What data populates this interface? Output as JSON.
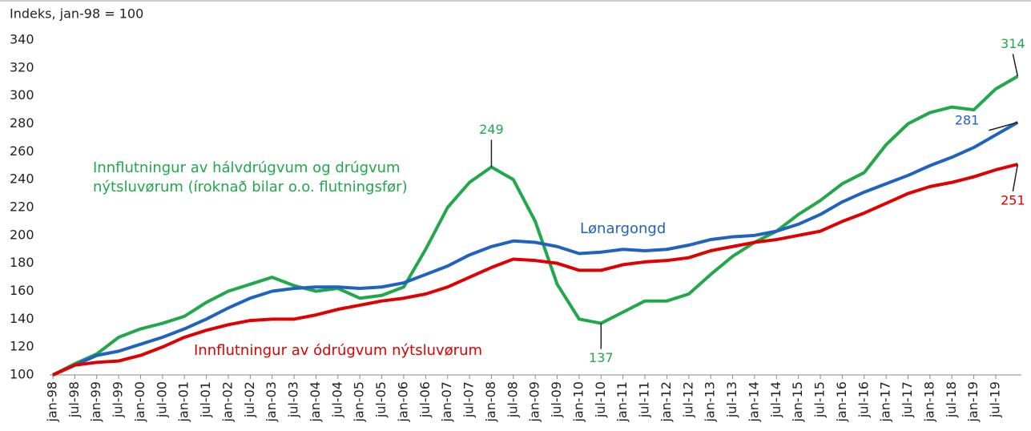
{
  "chart_data": {
    "type": "line",
    "y_label": "Indeks, jan-98 = 100",
    "categories": [
      "jan-98",
      "jul-98",
      "jan-99",
      "jul-99",
      "jan-00",
      "jul-00",
      "jan-01",
      "jul-01",
      "jan-02",
      "jul-02",
      "jan-03",
      "jul-03",
      "jan-04",
      "jul-04",
      "jan-05",
      "jul-05",
      "jan-06",
      "jul-06",
      "jan-07",
      "jul-07",
      "jan-08",
      "jul-08",
      "jan-09",
      "jul-09",
      "jan-10",
      "jul-10",
      "jan-11",
      "jul-11",
      "jan-12",
      "jul-12",
      "jan-13",
      "jul-13",
      "jan-14",
      "jul-14",
      "jan-15",
      "jul-15",
      "jan-16",
      "jul-16",
      "jan-17",
      "jul-17",
      "jan-18",
      "jul-18",
      "jan-19",
      "jul-19",
      null
    ],
    "series": [
      {
        "name": "Innflutningur av hálvdrúgvum og drúgvum nýtsluvørum (íroknað bilar o.o. flutningsfør)",
        "color": "#21a84a",
        "values": [
          100,
          108,
          115,
          127,
          133,
          137,
          142,
          152,
          160,
          165,
          170,
          164,
          160,
          162,
          155,
          157,
          163,
          190,
          220,
          238,
          249,
          240,
          210,
          165,
          140,
          137,
          145,
          153,
          153,
          158,
          172,
          185,
          195,
          203,
          215,
          225,
          237,
          245,
          265,
          280,
          288,
          292,
          290,
          305,
          314
        ],
        "value_labels": [
          null,
          null,
          null,
          null,
          null,
          null,
          null,
          null,
          null,
          null,
          null,
          null,
          null,
          null,
          null,
          null,
          null,
          null,
          null,
          null,
          "249",
          null,
          null,
          null,
          null,
          "137",
          null,
          null,
          null,
          null,
          null,
          null,
          null,
          null,
          null,
          null,
          null,
          null,
          null,
          null,
          null,
          null,
          null,
          null,
          "314"
        ]
      },
      {
        "name": "Lønargongd",
        "color": "#1f62c0",
        "values": [
          100,
          107,
          114,
          117,
          122,
          127,
          133,
          140,
          148,
          155,
          160,
          162,
          163,
          163,
          162,
          163,
          166,
          172,
          178,
          186,
          192,
          196,
          195,
          192,
          187,
          188,
          190,
          189,
          190,
          193,
          197,
          199,
          200,
          203,
          208,
          215,
          224,
          231,
          237,
          243,
          250,
          256,
          263,
          272,
          281
        ],
        "value_labels": [
          null,
          null,
          null,
          null,
          null,
          null,
          null,
          null,
          null,
          null,
          null,
          null,
          null,
          null,
          null,
          null,
          null,
          null,
          null,
          null,
          null,
          null,
          null,
          null,
          null,
          null,
          null,
          null,
          null,
          null,
          null,
          null,
          null,
          null,
          null,
          null,
          null,
          null,
          null,
          null,
          null,
          null,
          null,
          null,
          "281"
        ]
      },
      {
        "name": "Innflutningur av ódrúgvum nýtsluvørum",
        "color": "#e00000",
        "values": [
          100,
          107,
          109,
          110,
          114,
          120,
          127,
          132,
          136,
          139,
          140,
          140,
          143,
          147,
          150,
          153,
          155,
          158,
          163,
          170,
          177,
          183,
          182,
          180,
          175,
          175,
          179,
          181,
          182,
          184,
          189,
          192,
          195,
          197,
          200,
          203,
          210,
          216,
          223,
          230,
          235,
          238,
          242,
          247,
          251
        ],
        "value_labels": [
          null,
          null,
          null,
          null,
          null,
          null,
          null,
          null,
          null,
          null,
          null,
          null,
          null,
          null,
          null,
          null,
          null,
          null,
          null,
          null,
          null,
          null,
          null,
          null,
          null,
          null,
          null,
          null,
          null,
          null,
          null,
          null,
          null,
          null,
          null,
          null,
          null,
          null,
          null,
          null,
          null,
          null,
          null,
          null,
          "251"
        ]
      }
    ],
    "ylim": [
      100,
      340
    ],
    "yticks": [
      100,
      120,
      140,
      160,
      180,
      200,
      220,
      240,
      260,
      280,
      300,
      320,
      340
    ],
    "grid": false
  }
}
